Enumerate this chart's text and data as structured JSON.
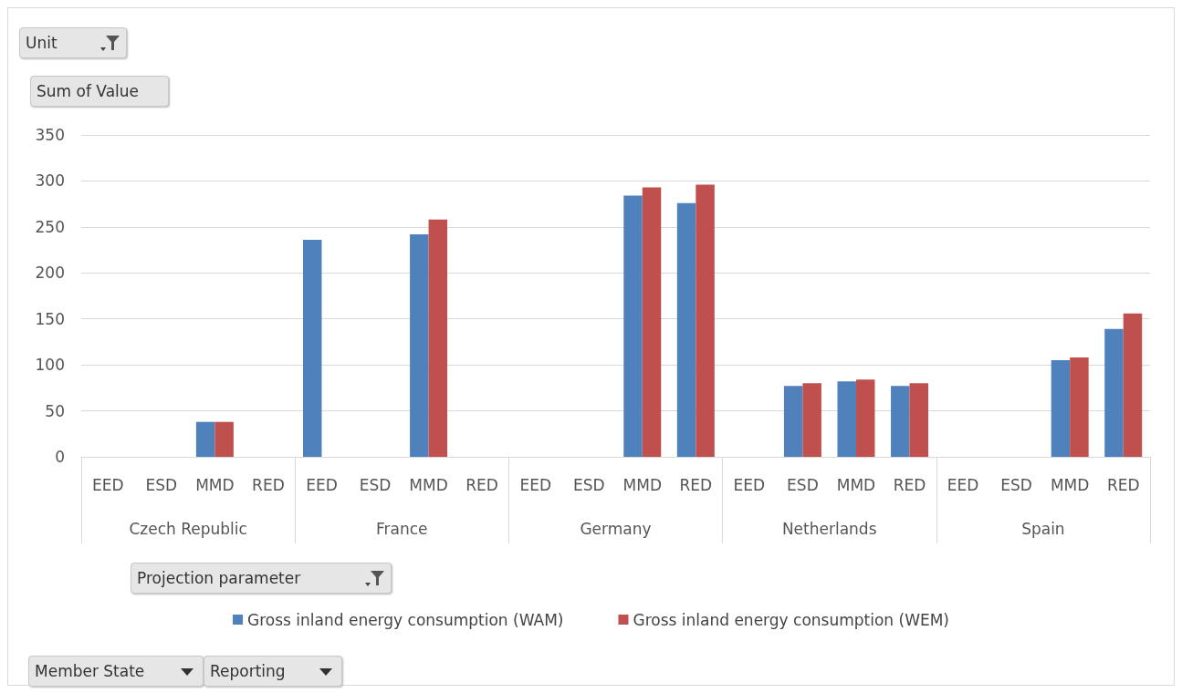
{
  "chart_data": {
    "type": "bar",
    "ylabel": "Sum of Value",
    "legend_title": "Projection parameter",
    "categories": [
      "EED",
      "ESD",
      "MMD",
      "RED",
      "EED",
      "ESD",
      "MMD",
      "RED",
      "EED",
      "ESD",
      "MMD",
      "RED",
      "EED",
      "ESD",
      "MMD",
      "RED",
      "EED",
      "ESD",
      "MMD",
      "RED"
    ],
    "series": [
      {
        "name": "Gross inland energy consumption (WAM)",
        "color": "#4f81bd",
        "values": [
          null,
          null,
          38,
          null,
          236,
          null,
          242,
          null,
          null,
          null,
          284,
          276,
          null,
          77,
          82,
          77,
          null,
          null,
          105,
          139
        ]
      },
      {
        "name": "Gross inland energy consumption (WEM)",
        "color": "#c0504d",
        "values": [
          null,
          null,
          38,
          null,
          null,
          null,
          258,
          null,
          null,
          null,
          293,
          296,
          null,
          80,
          84,
          80,
          null,
          null,
          108,
          156
        ]
      }
    ],
    "ylim": [
      0,
      350
    ],
    "yticks": [
      0,
      50,
      100,
      150,
      200,
      250,
      300,
      350
    ],
    "grid": "y",
    "legend": "bottom",
    "annotations": [
      "Unit",
      "Member State",
      "Reporting",
      "Czech Republic",
      "France",
      "Germany",
      "Netherlands",
      "Spain"
    ]
  }
}
